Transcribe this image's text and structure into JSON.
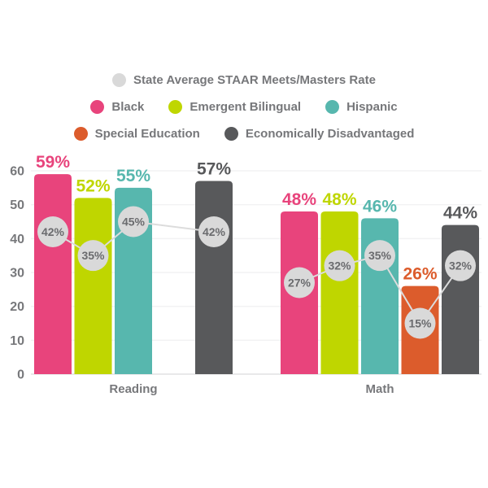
{
  "legend": {
    "rows": [
      [
        {
          "label": "State Average STAAR Meets/Masters Rate",
          "color": "#D9D9D9"
        }
      ],
      [
        {
          "label": "Black",
          "color": "#E8447C"
        },
        {
          "label": "Emergent Bilingual",
          "color": "#BFD600"
        },
        {
          "label": "Hispanic",
          "color": "#57B7AE"
        }
      ],
      [
        {
          "label": "Special Education",
          "color": "#DC5C2C"
        },
        {
          "label": "Economically Disadvantaged",
          "color": "#58595B"
        }
      ]
    ]
  },
  "chart_data": {
    "type": "bar",
    "title": "",
    "categories": [
      "Reading",
      "Math"
    ],
    "unit": "%",
    "ylim": [
      0,
      60
    ],
    "yticks": [
      0,
      10,
      20,
      30,
      40,
      50,
      60
    ],
    "grid": "horizontal",
    "legend_position": "top",
    "series": [
      {
        "name": "Black",
        "color": "#E8447C",
        "values": [
          59,
          48
        ],
        "state_avg": [
          42,
          27
        ]
      },
      {
        "name": "Emergent Bilingual",
        "color": "#BFD600",
        "values": [
          52,
          48
        ],
        "state_avg": [
          35,
          32
        ]
      },
      {
        "name": "Hispanic",
        "color": "#57B7AE",
        "values": [
          55,
          46
        ],
        "state_avg": [
          45,
          35
        ]
      },
      {
        "name": "Special Education",
        "color": "#DC5C2C",
        "values": [
          null,
          26
        ],
        "state_avg": [
          null,
          15
        ]
      },
      {
        "name": "Economically Disadvantaged",
        "color": "#58595B",
        "values": [
          57,
          44
        ],
        "state_avg": [
          42,
          32
        ]
      }
    ],
    "state_average_marker": {
      "name": "State Average STAAR Meets/Masters Rate",
      "fill": "#D9D9D9",
      "text_color": "#6A6B6E",
      "line_color": "#DCDCDC"
    },
    "axis_text_color": "#77787B",
    "grid_color": "#F2F2F3",
    "baseline_color": "#E2E2E3"
  }
}
